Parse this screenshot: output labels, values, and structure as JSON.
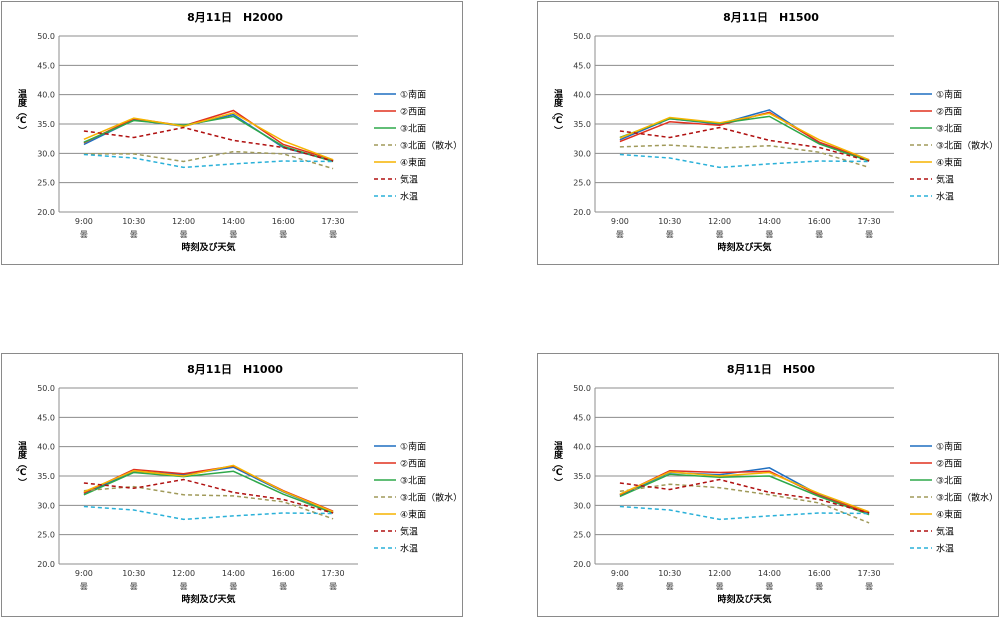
{
  "legend_labels": [
    "①南面",
    "②西面",
    "③北面",
    "③北面（散水）",
    "④東面",
    "気温",
    "水温"
  ],
  "series_style": [
    {
      "color": "#1f6fc0",
      "dash": false
    },
    {
      "color": "#e0301e",
      "dash": false
    },
    {
      "color": "#2ea84a",
      "dash": false
    },
    {
      "color": "#a09a5a",
      "dash": true
    },
    {
      "color": "#f5b400",
      "dash": false
    },
    {
      "color": "#b01010",
      "dash": true
    },
    {
      "color": "#29b0d8",
      "dash": true
    }
  ],
  "chart_data": [
    {
      "type": "line",
      "title": "8月11日　H2000",
      "xlabel": "時刻及び天気",
      "ylabel": "温度（℃）",
      "categories": [
        "9:00",
        "10:30",
        "12:00",
        "14:00",
        "16:00",
        "17:30"
      ],
      "weather": [
        "曇",
        "曇",
        "曇",
        "曇",
        "曇",
        "曇"
      ],
      "ylim": [
        20,
        50
      ],
      "yticks": [
        "20.0",
        "25.0",
        "30.0",
        "35.0",
        "40.0",
        "45.0",
        "50.0"
      ],
      "grid": true,
      "legend_position": "right",
      "series": [
        {
          "name": "①南面",
          "values": [
            31.5,
            35.7,
            34.6,
            36.6,
            31.0,
            28.7
          ]
        },
        {
          "name": "②西面",
          "values": [
            31.8,
            35.9,
            34.7,
            37.3,
            31.5,
            28.9
          ]
        },
        {
          "name": "③北面",
          "values": [
            31.9,
            35.6,
            34.8,
            36.3,
            31.2,
            28.6
          ]
        },
        {
          "name": "③北面（散水）",
          "values": [
            29.9,
            29.9,
            28.6,
            30.3,
            29.9,
            27.4
          ]
        },
        {
          "name": "④東面",
          "values": [
            32.4,
            36.0,
            34.6,
            36.9,
            32.1,
            28.9
          ]
        },
        {
          "name": "気温",
          "values": [
            33.8,
            32.7,
            34.4,
            32.2,
            31.0,
            28.7
          ]
        },
        {
          "name": "水温",
          "values": [
            29.8,
            29.2,
            27.6,
            28.2,
            28.7,
            28.6
          ]
        }
      ]
    },
    {
      "type": "line",
      "title": "8月11日　H1500",
      "xlabel": "時刻及び天気",
      "ylabel": "温度（℃）",
      "categories": [
        "9:00",
        "10:30",
        "12:00",
        "14:00",
        "16:00",
        "17:30"
      ],
      "weather": [
        "曇",
        "曇",
        "曇",
        "曇",
        "曇",
        "曇"
      ],
      "ylim": [
        20,
        50
      ],
      "yticks": [
        "20.0",
        "25.0",
        "30.0",
        "35.0",
        "40.0",
        "45.0",
        "50.0"
      ],
      "grid": true,
      "legend_position": "right",
      "series": [
        {
          "name": "①南面",
          "values": [
            32.3,
            35.9,
            35.0,
            37.4,
            31.8,
            28.8
          ]
        },
        {
          "name": "②西面",
          "values": [
            32.0,
            35.4,
            34.8,
            37.0,
            31.9,
            28.9
          ]
        },
        {
          "name": "③北面",
          "values": [
            32.7,
            35.9,
            35.1,
            36.3,
            31.6,
            28.7
          ]
        },
        {
          "name": "③北面（散水）",
          "values": [
            31.1,
            31.4,
            30.9,
            31.3,
            30.2,
            27.6
          ]
        },
        {
          "name": "④東面",
          "values": [
            32.6,
            36.1,
            35.2,
            36.8,
            32.3,
            28.9
          ]
        },
        {
          "name": "気温",
          "values": [
            33.8,
            32.7,
            34.4,
            32.2,
            31.0,
            28.7
          ]
        },
        {
          "name": "水温",
          "values": [
            29.8,
            29.2,
            27.6,
            28.2,
            28.7,
            28.6
          ]
        }
      ]
    },
    {
      "type": "line",
      "title": "8月11日　H1000",
      "xlabel": "時刻及び天気",
      "ylabel": "温度（℃）",
      "categories": [
        "9:00",
        "10:30",
        "12:00",
        "14:00",
        "16:00",
        "17:30"
      ],
      "weather": [
        "曇",
        "曇",
        "曇",
        "曇",
        "曇",
        "曇"
      ],
      "ylim": [
        20,
        50
      ],
      "yticks": [
        "20.0",
        "25.0",
        "30.0",
        "35.0",
        "40.0",
        "45.0",
        "50.0"
      ],
      "grid": true,
      "legend_position": "right",
      "series": [
        {
          "name": "①南面",
          "values": [
            32.0,
            35.8,
            35.2,
            36.5,
            32.3,
            28.8
          ]
        },
        {
          "name": "②西面",
          "values": [
            32.1,
            36.1,
            35.4,
            36.7,
            32.5,
            29.0
          ]
        },
        {
          "name": "③北面",
          "values": [
            31.8,
            35.6,
            34.9,
            35.8,
            31.9,
            28.7
          ]
        },
        {
          "name": "③北面（散水）",
          "values": [
            32.5,
            33.2,
            31.8,
            31.6,
            30.6,
            27.7
          ]
        },
        {
          "name": "④東面",
          "values": [
            32.3,
            35.9,
            35.0,
            36.8,
            32.4,
            28.9
          ]
        },
        {
          "name": "気温",
          "values": [
            33.8,
            32.9,
            34.4,
            32.2,
            31.0,
            28.7
          ]
        },
        {
          "name": "水温",
          "values": [
            29.8,
            29.2,
            27.6,
            28.2,
            28.7,
            28.6
          ]
        }
      ]
    },
    {
      "type": "line",
      "title": "8月11日　H500",
      "xlabel": "時刻及び天気",
      "ylabel": "温度（℃）",
      "categories": [
        "9:00",
        "10:30",
        "12:00",
        "14:00",
        "16:00",
        "17:30"
      ],
      "weather": [
        "曇",
        "曇",
        "曇",
        "曇",
        "曇",
        "曇"
      ],
      "ylim": [
        20,
        50
      ],
      "yticks": [
        "20.0",
        "25.0",
        "30.0",
        "35.0",
        "40.0",
        "45.0",
        "50.0"
      ],
      "grid": true,
      "legend_position": "right",
      "series": [
        {
          "name": "①南面",
          "values": [
            31.7,
            35.6,
            35.2,
            36.4,
            31.8,
            28.6
          ]
        },
        {
          "name": "②西面",
          "values": [
            31.8,
            35.9,
            35.6,
            35.8,
            31.7,
            28.7
          ]
        },
        {
          "name": "③北面",
          "values": [
            31.5,
            35.3,
            34.8,
            35.0,
            31.5,
            28.4
          ]
        },
        {
          "name": "③北面（散水）",
          "values": [
            32.4,
            33.6,
            33.0,
            31.8,
            30.4,
            27.0
          ]
        },
        {
          "name": "④東面",
          "values": [
            31.9,
            35.7,
            35.0,
            35.6,
            32.0,
            28.9
          ]
        },
        {
          "name": "気温",
          "values": [
            33.8,
            32.7,
            34.4,
            32.2,
            31.0,
            28.7
          ]
        },
        {
          "name": "水温",
          "values": [
            29.8,
            29.2,
            27.6,
            28.2,
            28.7,
            28.6
          ]
        }
      ]
    }
  ]
}
